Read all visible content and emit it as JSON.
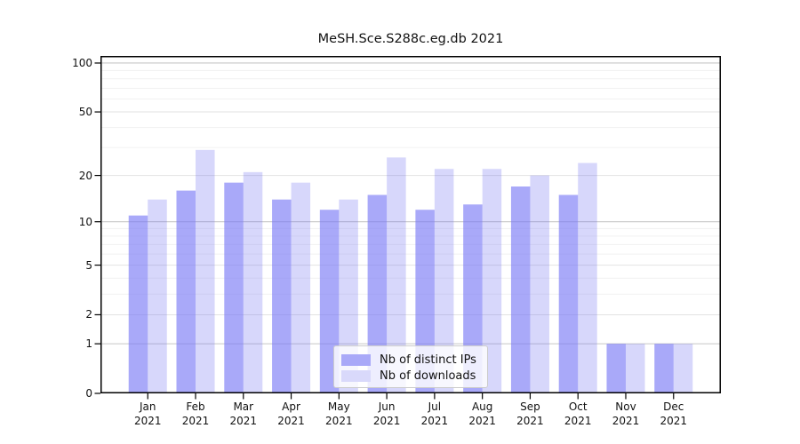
{
  "title": "MeSH.Sce.S288c.eg.db 2021",
  "chart_data": {
    "type": "bar",
    "title": "MeSH.Sce.S288c.eg.db 2021",
    "categories": [
      "Jan 2021",
      "Feb 2021",
      "Mar 2021",
      "Apr 2021",
      "May 2021",
      "Jun 2021",
      "Jul 2021",
      "Aug 2021",
      "Sep 2021",
      "Oct 2021",
      "Nov 2021",
      "Dec 2021"
    ],
    "x_months": [
      "Jan",
      "Feb",
      "Mar",
      "Apr",
      "May",
      "Jun",
      "Jul",
      "Aug",
      "Sep",
      "Oct",
      "Nov",
      "Dec"
    ],
    "x_year": "2021",
    "series": [
      {
        "name": "Nb of distinct IPs",
        "color": "#a9a9f8",
        "values": [
          11,
          16,
          18,
          14,
          12,
          15,
          12,
          13,
          17,
          15,
          1,
          1
        ]
      },
      {
        "name": "Nb of downloads",
        "color": "#d9d9fb",
        "values": [
          14,
          29,
          21,
          18,
          14,
          26,
          22,
          22,
          20,
          24,
          1,
          1
        ]
      }
    ],
    "y_scale": "log1p",
    "y_ticks": [
      0,
      1,
      2,
      5,
      10,
      20,
      50,
      100
    ],
    "y_major_gridlines": [
      1,
      10,
      100
    ],
    "y_mid_gridlines": [
      2,
      5,
      20,
      50
    ],
    "y_minor_gridlines": [
      3,
      4,
      6,
      7,
      8,
      9,
      30,
      40,
      60,
      70,
      80,
      90
    ],
    "ylim": [
      0,
      110.5
    ],
    "xlabel": "",
    "ylabel": "",
    "grid": "both",
    "legend_position": "inside-bottom-center"
  },
  "legend": {
    "items": [
      {
        "label": "Nb of distinct IPs",
        "swatch_color": "#a9a9f8"
      },
      {
        "label": "Nb of downloads",
        "swatch_color": "#d9d9fb"
      }
    ]
  },
  "colors": {
    "bar_distinct_ips_solid": "#a9a9f8",
    "bar_downloads_solid": "#d9d9fb",
    "bar_distinct_ips_fill": "rgba(123,123,246,0.65)",
    "bar_downloads_fill": "rgba(110,110,240,0.28)",
    "grid_major": "#c8c8c8",
    "grid_mid": "#e2e2e2",
    "grid_minor": "#f1f1f1",
    "axis": "#000000",
    "background": "#ffffff"
  }
}
